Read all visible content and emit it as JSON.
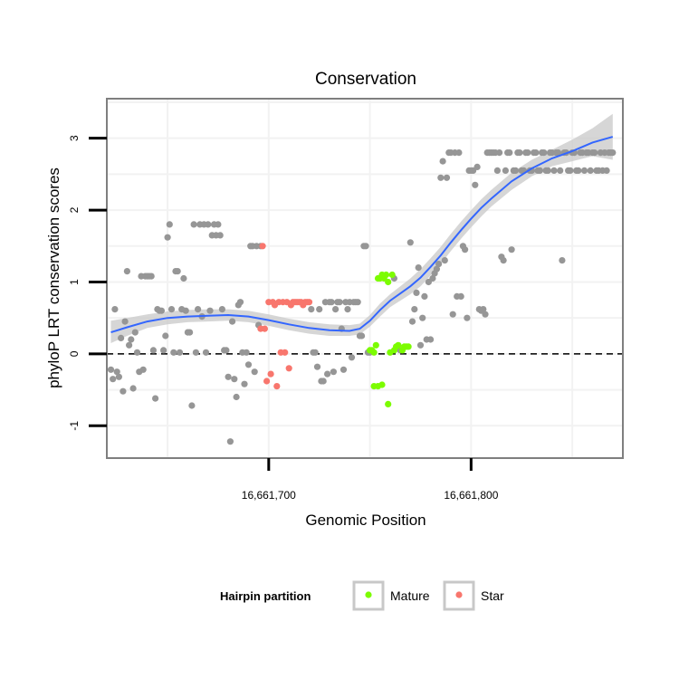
{
  "chart_data": {
    "type": "scatter",
    "title": "Conservation",
    "xlabel": "Genomic Position",
    "ylabel": "phyloP LRT conservation scores",
    "xlim": [
      16661620,
      16661875
    ],
    "ylim": [
      -1.45,
      3.55
    ],
    "x_ticks": [
      16661700,
      16661800
    ],
    "x_tick_labels": [
      "16,661,700",
      "16,661,800"
    ],
    "y_ticks": [
      -1,
      0,
      1,
      2,
      3
    ],
    "y_tick_labels": [
      "-1",
      "0",
      "1",
      "2",
      "3"
    ],
    "reference_line": {
      "y": 0,
      "style": "dashed"
    },
    "grid": true,
    "legend": {
      "title": "Hairpin partition",
      "placement": "bottom",
      "entries": [
        {
          "label": "Mature",
          "color": "#7CFC00"
        },
        {
          "label": "Star",
          "color": "#F8766D"
        }
      ]
    },
    "colors": {
      "other": "#969696",
      "smooth": "#3366FF",
      "ribbon": "#C8C8C8"
    },
    "series": [
      {
        "name": "Other",
        "color": "#969696",
        "points": [
          [
            16661622,
            -0.22
          ],
          [
            16661623,
            -0.35
          ],
          [
            16661624,
            0.62
          ],
          [
            16661625,
            -0.25
          ],
          [
            16661626,
            -0.32
          ],
          [
            16661627,
            0.22
          ],
          [
            16661628,
            -0.52
          ],
          [
            16661629,
            0.45
          ],
          [
            16661630,
            1.15
          ],
          [
            16661631,
            0.12
          ],
          [
            16661632,
            0.2
          ],
          [
            16661633,
            -0.48
          ],
          [
            16661634,
            0.3
          ],
          [
            16661635,
            0.02
          ],
          [
            16661636,
            -0.25
          ],
          [
            16661637,
            1.08
          ],
          [
            16661638,
            -0.22
          ],
          [
            16661639,
            1.08
          ],
          [
            16661640,
            1.08
          ],
          [
            16661641,
            1.08
          ],
          [
            16661642,
            1.08
          ],
          [
            16661643,
            0.05
          ],
          [
            16661644,
            -0.62
          ],
          [
            16661645,
            0.62
          ],
          [
            16661646,
            0.6
          ],
          [
            16661647,
            0.6
          ],
          [
            16661648,
            0.05
          ],
          [
            16661649,
            0.25
          ],
          [
            16661650,
            1.62
          ],
          [
            16661651,
            1.8
          ],
          [
            16661652,
            0.62
          ],
          [
            16661653,
            0.02
          ],
          [
            16661654,
            1.15
          ],
          [
            16661655,
            1.15
          ],
          [
            16661656,
            0.02
          ],
          [
            16661657,
            0.62
          ],
          [
            16661658,
            1.05
          ],
          [
            16661659,
            0.6
          ],
          [
            16661660,
            0.3
          ],
          [
            16661661,
            0.3
          ],
          [
            16661662,
            -0.72
          ],
          [
            16661663,
            1.8
          ],
          [
            16661664,
            0.02
          ],
          [
            16661665,
            0.62
          ],
          [
            16661666,
            1.8
          ],
          [
            16661667,
            0.52
          ],
          [
            16661668,
            1.8
          ],
          [
            16661669,
            0.02
          ],
          [
            16661670,
            1.8
          ],
          [
            16661671,
            0.6
          ],
          [
            16661672,
            1.65
          ],
          [
            16661673,
            1.8
          ],
          [
            16661674,
            1.65
          ],
          [
            16661675,
            1.8
          ],
          [
            16661676,
            1.65
          ],
          [
            16661677,
            0.62
          ],
          [
            16661678,
            0.05
          ],
          [
            16661679,
            0.05
          ],
          [
            16661680,
            -0.32
          ],
          [
            16661681,
            -1.22
          ],
          [
            16661682,
            0.45
          ],
          [
            16661683,
            -0.35
          ],
          [
            16661684,
            -0.6
          ],
          [
            16661685,
            0.68
          ],
          [
            16661686,
            0.72
          ],
          [
            16661687,
            0.02
          ],
          [
            16661688,
            -0.42
          ],
          [
            16661689,
            0.02
          ],
          [
            16661690,
            -0.15
          ],
          [
            16661691,
            1.5
          ],
          [
            16661692,
            1.5
          ],
          [
            16661693,
            -0.25
          ],
          [
            16661694,
            1.5
          ],
          [
            16661695,
            0.4
          ],
          [
            16661696,
            1.5
          ],
          [
            16661721,
            0.62
          ],
          [
            16661722,
            0.02
          ],
          [
            16661723,
            0.02
          ],
          [
            16661724,
            -0.18
          ],
          [
            16661725,
            0.62
          ],
          [
            16661726,
            -0.38
          ],
          [
            16661727,
            -0.38
          ],
          [
            16661728,
            0.72
          ],
          [
            16661729,
            -0.28
          ],
          [
            16661730,
            0.72
          ],
          [
            16661731,
            0.72
          ],
          [
            16661732,
            -0.25
          ],
          [
            16661733,
            0.62
          ],
          [
            16661734,
            0.72
          ],
          [
            16661735,
            0.72
          ],
          [
            16661736,
            0.35
          ],
          [
            16661737,
            -0.22
          ],
          [
            16661738,
            0.72
          ],
          [
            16661739,
            0.62
          ],
          [
            16661740,
            0.72
          ],
          [
            16661741,
            -0.05
          ],
          [
            16661742,
            0.72
          ],
          [
            16661743,
            0.72
          ],
          [
            16661744,
            0.72
          ],
          [
            16661745,
            0.25
          ],
          [
            16661746,
            0.25
          ],
          [
            16661747,
            1.5
          ],
          [
            16661748,
            1.5
          ],
          [
            16661749,
            0.02
          ],
          [
            16661750,
            0.02
          ],
          [
            16661762,
            1.05
          ],
          [
            16661765,
            0.05
          ],
          [
            16661770,
            1.55
          ],
          [
            16661771,
            0.45
          ],
          [
            16661772,
            0.62
          ],
          [
            16661773,
            0.85
          ],
          [
            16661774,
            1.2
          ],
          [
            16661775,
            0.12
          ],
          [
            16661776,
            0.5
          ],
          [
            16661777,
            0.8
          ],
          [
            16661778,
            0.2
          ],
          [
            16661779,
            1.0
          ],
          [
            16661780,
            0.2
          ],
          [
            16661781,
            1.05
          ],
          [
            16661782,
            1.12
          ],
          [
            16661783,
            1.18
          ],
          [
            16661784,
            1.25
          ],
          [
            16661785,
            2.45
          ],
          [
            16661786,
            2.68
          ],
          [
            16661787,
            1.3
          ],
          [
            16661788,
            2.45
          ],
          [
            16661789,
            2.8
          ],
          [
            16661790,
            2.8
          ],
          [
            16661791,
            0.55
          ],
          [
            16661792,
            2.8
          ],
          [
            16661793,
            0.8
          ],
          [
            16661794,
            2.8
          ],
          [
            16661795,
            0.8
          ],
          [
            16661796,
            1.5
          ],
          [
            16661797,
            1.45
          ],
          [
            16661798,
            0.5
          ],
          [
            16661799,
            2.55
          ],
          [
            16661800,
            2.55
          ],
          [
            16661801,
            2.55
          ],
          [
            16661802,
            2.35
          ],
          [
            16661803,
            2.6
          ],
          [
            16661804,
            0.62
          ],
          [
            16661805,
            0.6
          ],
          [
            16661806,
            0.62
          ],
          [
            16661807,
            0.55
          ],
          [
            16661808,
            2.8
          ],
          [
            16661809,
            2.8
          ],
          [
            16661810,
            2.8
          ],
          [
            16661811,
            2.8
          ],
          [
            16661812,
            2.8
          ],
          [
            16661813,
            2.55
          ],
          [
            16661814,
            2.8
          ],
          [
            16661815,
            1.35
          ],
          [
            16661816,
            1.3
          ],
          [
            16661817,
            2.55
          ],
          [
            16661818,
            2.8
          ],
          [
            16661819,
            2.8
          ],
          [
            16661820,
            1.45
          ],
          [
            16661821,
            2.55
          ],
          [
            16661822,
            2.55
          ],
          [
            16661823,
            2.8
          ],
          [
            16661824,
            2.8
          ],
          [
            16661825,
            2.55
          ],
          [
            16661826,
            2.55
          ],
          [
            16661827,
            2.8
          ],
          [
            16661828,
            2.8
          ],
          [
            16661829,
            2.55
          ],
          [
            16661830,
            2.55
          ],
          [
            16661831,
            2.8
          ],
          [
            16661832,
            2.8
          ],
          [
            16661833,
            2.55
          ],
          [
            16661834,
            2.55
          ],
          [
            16661835,
            2.8
          ],
          [
            16661836,
            2.8
          ],
          [
            16661837,
            2.55
          ],
          [
            16661838,
            2.55
          ],
          [
            16661839,
            2.8
          ],
          [
            16661840,
            2.8
          ],
          [
            16661841,
            2.55
          ],
          [
            16661842,
            2.8
          ],
          [
            16661843,
            2.8
          ],
          [
            16661844,
            2.55
          ],
          [
            16661845,
            1.3
          ],
          [
            16661846,
            2.8
          ],
          [
            16661847,
            2.8
          ],
          [
            16661848,
            2.55
          ],
          [
            16661849,
            2.55
          ],
          [
            16661850,
            2.8
          ],
          [
            16661851,
            2.8
          ],
          [
            16661852,
            2.55
          ],
          [
            16661853,
            2.55
          ],
          [
            16661854,
            2.8
          ],
          [
            16661855,
            2.8
          ],
          [
            16661856,
            2.55
          ],
          [
            16661857,
            2.8
          ],
          [
            16661858,
            2.8
          ],
          [
            16661859,
            2.55
          ],
          [
            16661860,
            2.8
          ],
          [
            16661861,
            2.8
          ],
          [
            16661862,
            2.55
          ],
          [
            16661863,
            2.55
          ],
          [
            16661864,
            2.8
          ],
          [
            16661865,
            2.55
          ],
          [
            16661866,
            2.8
          ],
          [
            16661867,
            2.55
          ],
          [
            16661868,
            2.8
          ],
          [
            16661869,
            2.8
          ],
          [
            16661870,
            2.8
          ]
        ]
      },
      {
        "name": "Mature",
        "color": "#7CFC00",
        "points": [
          [
            16661750,
            0.05
          ],
          [
            16661751,
            0.05
          ],
          [
            16661752,
            0.02
          ],
          [
            16661753,
            0.12
          ],
          [
            16661754,
            1.05
          ],
          [
            16661755,
            1.05
          ],
          [
            16661756,
            1.1
          ],
          [
            16661757,
            1.05
          ],
          [
            16661758,
            1.1
          ],
          [
            16661759,
            1.0
          ],
          [
            16661760,
            0.02
          ],
          [
            16661761,
            1.1
          ],
          [
            16661762,
            0.05
          ],
          [
            16661763,
            0.1
          ],
          [
            16661764,
            0.12
          ],
          [
            16661766,
            0.05
          ],
          [
            16661767,
            0.1
          ],
          [
            16661768,
            0.1
          ],
          [
            16661769,
            0.1
          ],
          [
            16661752,
            -0.45
          ],
          [
            16661754,
            -0.45
          ],
          [
            16661756,
            -0.43
          ],
          [
            16661759,
            -0.7
          ]
        ]
      },
      {
        "name": "Star",
        "color": "#F8766D",
        "points": [
          [
            16661696,
            0.35
          ],
          [
            16661697,
            1.5
          ],
          [
            16661698,
            0.35
          ],
          [
            16661699,
            -0.38
          ],
          [
            16661700,
            0.72
          ],
          [
            16661701,
            -0.28
          ],
          [
            16661702,
            0.72
          ],
          [
            16661703,
            0.68
          ],
          [
            16661704,
            -0.45
          ],
          [
            16661705,
            0.72
          ],
          [
            16661706,
            0.02
          ],
          [
            16661707,
            0.72
          ],
          [
            16661708,
            0.02
          ],
          [
            16661709,
            0.72
          ],
          [
            16661710,
            -0.2
          ],
          [
            16661711,
            0.68
          ],
          [
            16661712,
            0.72
          ],
          [
            16661713,
            0.72
          ],
          [
            16661714,
            0.72
          ],
          [
            16661715,
            0.72
          ],
          [
            16661716,
            0.72
          ],
          [
            16661717,
            0.68
          ],
          [
            16661718,
            0.72
          ],
          [
            16661719,
            0.72
          ],
          [
            16661720,
            0.72
          ]
        ]
      }
    ],
    "smooth": {
      "name": "loess fit",
      "x": [
        16661622,
        16661630,
        16661640,
        16661650,
        16661660,
        16661670,
        16661680,
        16661690,
        16661700,
        16661710,
        16661720,
        16661730,
        16661740,
        16661745,
        16661750,
        16661755,
        16661760,
        16661765,
        16661770,
        16661775,
        16661780,
        16661785,
        16661790,
        16661795,
        16661800,
        16661805,
        16661810,
        16661820,
        16661830,
        16661840,
        16661850,
        16661860,
        16661870
      ],
      "y": [
        0.3,
        0.37,
        0.45,
        0.5,
        0.52,
        0.53,
        0.54,
        0.52,
        0.47,
        0.41,
        0.36,
        0.33,
        0.32,
        0.35,
        0.46,
        0.61,
        0.74,
        0.84,
        0.94,
        1.06,
        1.21,
        1.37,
        1.55,
        1.72,
        1.88,
        2.03,
        2.16,
        2.4,
        2.58,
        2.72,
        2.82,
        2.94,
        3.02
      ],
      "ymin": [
        0.15,
        0.25,
        0.36,
        0.41,
        0.44,
        0.45,
        0.46,
        0.44,
        0.39,
        0.33,
        0.28,
        0.25,
        0.25,
        0.27,
        0.38,
        0.52,
        0.65,
        0.74,
        0.83,
        0.94,
        1.09,
        1.25,
        1.43,
        1.6,
        1.76,
        1.91,
        2.05,
        2.28,
        2.47,
        2.61,
        2.68,
        2.75,
        2.7
      ],
      "ymax": [
        0.46,
        0.5,
        0.55,
        0.59,
        0.61,
        0.62,
        0.62,
        0.6,
        0.55,
        0.49,
        0.44,
        0.41,
        0.4,
        0.42,
        0.54,
        0.7,
        0.83,
        0.94,
        1.05,
        1.18,
        1.33,
        1.49,
        1.67,
        1.84,
        2.0,
        2.15,
        2.28,
        2.52,
        2.7,
        2.84,
        2.98,
        3.14,
        3.34
      ]
    }
  }
}
